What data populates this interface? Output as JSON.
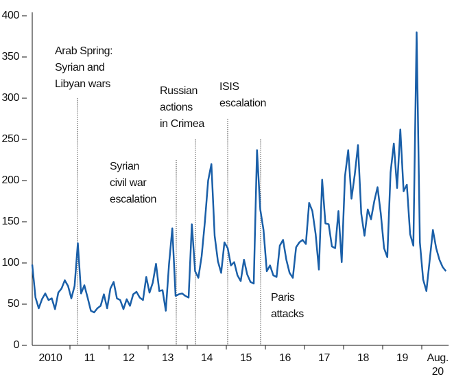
{
  "chart_data": {
    "type": "line",
    "categories": [
      null,
      null,
      null,
      null,
      null,
      null,
      "2010",
      null,
      null,
      null,
      null,
      null,
      null,
      null,
      null,
      null,
      null,
      null,
      "11",
      null,
      null,
      null,
      null,
      null,
      null,
      null,
      null,
      null,
      null,
      null,
      "12",
      null,
      null,
      null,
      null,
      null,
      null,
      null,
      null,
      null,
      null,
      null,
      "13",
      null,
      null,
      null,
      null,
      null,
      null,
      null,
      null,
      null,
      null,
      null,
      "14",
      null,
      null,
      null,
      null,
      null,
      null,
      null,
      null,
      null,
      null,
      null,
      "15",
      null,
      null,
      null,
      null,
      null,
      null,
      null,
      null,
      null,
      null,
      null,
      "16",
      null,
      null,
      null,
      null,
      null,
      null,
      null,
      null,
      null,
      null,
      null,
      "17",
      null,
      null,
      null,
      null,
      null,
      null,
      null,
      null,
      null,
      null,
      null,
      "18",
      null,
      null,
      null,
      null,
      null,
      null,
      null,
      null,
      null,
      null,
      null,
      "19",
      null,
      null,
      null,
      null,
      null,
      null,
      null,
      null,
      null,
      null,
      null,
      null,
      "Aug. 20"
    ],
    "series": [
      {
        "color": "#1a5fa8",
        "values": [
          98,
          58,
          45,
          56,
          63,
          55,
          57,
          44,
          64,
          69,
          79,
          72,
          57,
          72,
          124,
          63,
          73,
          58,
          42,
          40,
          45,
          48,
          62,
          45,
          69,
          77,
          57,
          55,
          44,
          56,
          48,
          62,
          65,
          58,
          55,
          83,
          64,
          76,
          99,
          66,
          67,
          42,
          99,
          142,
          60,
          62,
          63,
          60,
          58,
          147,
          90,
          82,
          108,
          150,
          200,
          220,
          133,
          102,
          88,
          125,
          118,
          97,
          101,
          85,
          78,
          104,
          86,
          77,
          75,
          237,
          165,
          140,
          90,
          97,
          85,
          83,
          121,
          128,
          104,
          88,
          82,
          119,
          125,
          128,
          123,
          173,
          163,
          135,
          92,
          201,
          148,
          147,
          120,
          118,
          163,
          101,
          205,
          237,
          178,
          207,
          243,
          160,
          133,
          165,
          153,
          175,
          192,
          160,
          118,
          107,
          210,
          245,
          191,
          262,
          187,
          195,
          135,
          121,
          380,
          125,
          80,
          66,
          103,
          140,
          118,
          104,
          95,
          90
        ]
      }
    ],
    "ylim": [
      0,
      400
    ],
    "yticks": [
      0,
      50,
      100,
      150,
      200,
      250,
      300,
      350,
      400
    ],
    "grid": false,
    "annotations": [
      {
        "lines": [
          "Arab Spring:",
          "Syrian and",
          "Libyan wars"
        ]
      },
      {
        "lines": [
          "Syrian",
          "civil war",
          "escalation"
        ]
      },
      {
        "lines": [
          "Russian",
          "actions",
          "in Crimea"
        ]
      },
      {
        "lines": [
          "ISIS",
          "escalation"
        ]
      },
      {
        "lines": [
          "Paris",
          "attacks"
        ]
      }
    ]
  }
}
